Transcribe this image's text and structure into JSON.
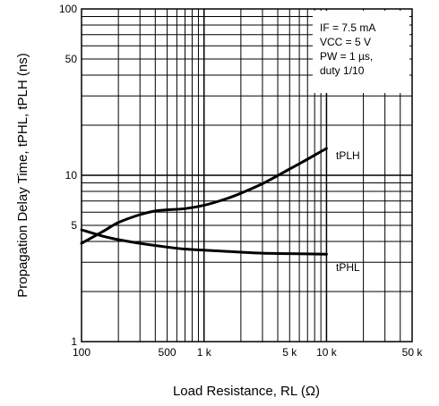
{
  "chart_data": {
    "type": "line",
    "title": "",
    "xlabel": "Load Resistance, RL (Ω)",
    "ylabel": "Propagation Delay Time, tPHL, tPLH (ns)",
    "x_scale": "log",
    "y_scale": "log",
    "xlim": [
      100,
      50000
    ],
    "ylim": [
      1,
      100
    ],
    "grid": true,
    "x_ticks": [
      {
        "value": 100,
        "label": "100"
      },
      {
        "value": 500,
        "label": "500"
      },
      {
        "value": 1000,
        "label": "1 k"
      },
      {
        "value": 5000,
        "label": "5 k"
      },
      {
        "value": 10000,
        "label": "10 k"
      },
      {
        "value": 50000,
        "label": "50 k"
      }
    ],
    "y_ticks": [
      {
        "value": 1,
        "label": "1"
      },
      {
        "value": 5,
        "label": "5"
      },
      {
        "value": 10,
        "label": "10"
      },
      {
        "value": 50,
        "label": "50"
      },
      {
        "value": 100,
        "label": "100"
      }
    ],
    "series": [
      {
        "name": "tPLH",
        "x": [
          100,
          150,
          200,
          300,
          400,
          500,
          700,
          1000,
          1500,
          2000,
          3000,
          5000,
          7000,
          10000
        ],
        "y": [
          3.9,
          4.6,
          5.2,
          5.8,
          6.1,
          6.2,
          6.3,
          6.6,
          7.2,
          7.8,
          8.9,
          10.9,
          12.5,
          14.5
        ]
      },
      {
        "name": "tPHL",
        "x": [
          100,
          150,
          200,
          300,
          500,
          700,
          1000,
          2000,
          3000,
          5000,
          10000
        ],
        "y": [
          4.7,
          4.3,
          4.1,
          3.9,
          3.7,
          3.6,
          3.55,
          3.45,
          3.4,
          3.38,
          3.35
        ]
      }
    ],
    "annotation_lines": [
      "IF = 7.5 mA",
      "VCC = 5 V",
      "PW = 1 µs,",
      "duty 1/10"
    ]
  }
}
